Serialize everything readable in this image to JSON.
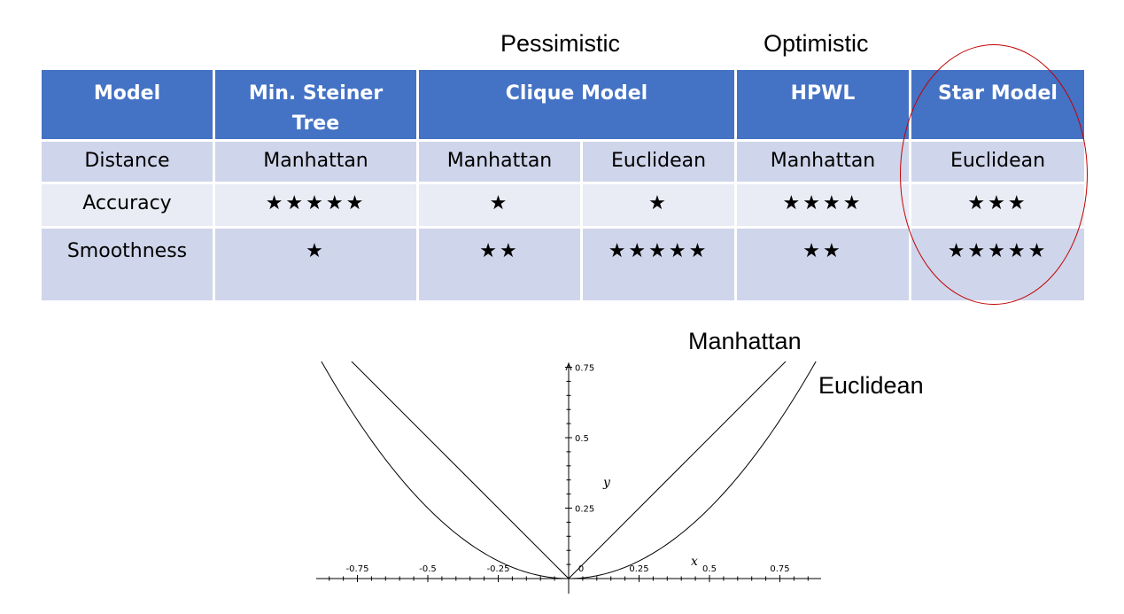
{
  "labels": {
    "pessimistic": "Pessimistic",
    "optimistic": "Optimistic"
  },
  "table": {
    "header": {
      "model": "Model",
      "steiner_line1": "Min. Steiner",
      "steiner_line2": "Tree",
      "clique": "Clique Model",
      "hpwl": "HPWL",
      "star": "Star Model"
    },
    "rows": {
      "distance": {
        "label": "Distance",
        "steiner": "Manhattan",
        "clique_manhattan": "Manhattan",
        "clique_euclidean": "Euclidean",
        "hpwl": "Manhattan",
        "star": "Euclidean"
      },
      "accuracy": {
        "label": "Accuracy",
        "steiner": "★★★★★",
        "clique_manhattan": "★",
        "clique_euclidean": "★",
        "hpwl": "★★★★",
        "star": "★★★"
      },
      "smoothness": {
        "label": "Smoothness",
        "steiner": "★",
        "clique_manhattan": "★★",
        "clique_euclidean": "★★★★★",
        "hpwl": "★★",
        "star": "★★★★★"
      }
    }
  },
  "highlight_color": "#c00000",
  "header_color": "#4472c4",
  "chart_data": {
    "type": "line",
    "series": [
      {
        "name": "Manhattan",
        "x": [
          -0.75,
          0,
          0.75
        ],
        "y": [
          0.75,
          0,
          0.75
        ]
      },
      {
        "name": "Euclidean",
        "x": [
          -0.85,
          -0.75,
          -0.5,
          -0.25,
          0,
          0.25,
          0.5,
          0.75,
          0.85
        ],
        "y": [
          0.7225,
          0.5625,
          0.25,
          0.0625,
          0,
          0.0625,
          0.25,
          0.5625,
          0.7225
        ]
      }
    ],
    "x_ticks": [
      "-0.75",
      "-0.5",
      "-0.25",
      "0",
      "0.25",
      "0.5",
      "0.75"
    ],
    "y_ticks": [
      "0.25",
      "0.5",
      "0.75"
    ],
    "xlabel": "x",
    "ylabel": "y",
    "xlim": [
      -0.9,
      0.9
    ],
    "ylim": [
      0,
      0.75
    ]
  }
}
